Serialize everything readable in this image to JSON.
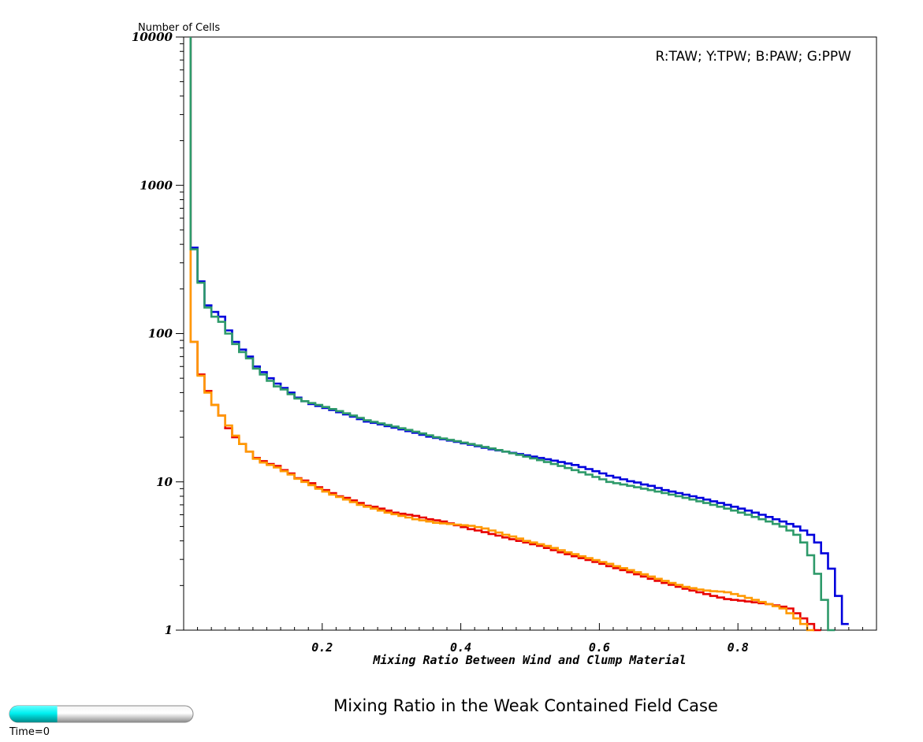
{
  "chart_data": {
    "type": "line",
    "title": "Mixing Ratio in the Weak Contained Field Case",
    "xlabel": "Mixing Ratio Between Wind and Clump Material",
    "ylabel": "Number of Cells",
    "legend_text": "R:TAW; Y:TPW; B:PAW; G:PPW",
    "legend_position": "top-right",
    "xlim": [
      0,
      1
    ],
    "ylim": [
      1,
      10000
    ],
    "yscale": "log",
    "grid": false,
    "x_ticks": [
      0.2,
      0.4,
      0.6,
      0.8
    ],
    "x_tick_labels": [
      "0.2",
      "0.4",
      "0.6",
      "0.8"
    ],
    "y_ticks": [
      1,
      10,
      100,
      1000,
      10000
    ],
    "y_tick_labels": [
      "1",
      "10",
      "100",
      "1000",
      "10000"
    ],
    "time_label": "Time=0",
    "time_progress": 0.26,
    "series": [
      {
        "code": "R",
        "color": "#e80000",
        "y_start": 10000,
        "x_step": 0.01,
        "values": [
          88,
          53,
          41,
          33,
          28,
          23,
          20,
          18,
          16,
          14.5,
          13.8,
          13.2,
          12.8,
          12,
          11.4,
          10.6,
          10.2,
          9.8,
          9.2,
          8.8,
          8.4,
          8,
          7.8,
          7.5,
          7.2,
          6.9,
          6.8,
          6.6,
          6.4,
          6.2,
          6.1,
          6,
          5.9,
          5.75,
          5.6,
          5.5,
          5.4,
          5.25,
          5.1,
          4.95,
          4.8,
          4.7,
          4.58,
          4.45,
          4.34,
          4.22,
          4.1,
          4,
          3.9,
          3.8,
          3.7,
          3.58,
          3.46,
          3.35,
          3.25,
          3.15,
          3.06,
          2.97,
          2.88,
          2.8,
          2.7,
          2.62,
          2.54,
          2.46,
          2.38,
          2.3,
          2.22,
          2.15,
          2.08,
          2.02,
          1.96,
          1.9,
          1.85,
          1.8,
          1.75,
          1.7,
          1.66,
          1.62,
          1.6,
          1.58,
          1.56,
          1.54,
          1.52,
          1.5,
          1.47,
          1.44,
          1.4,
          1.3,
          1.2,
          1.1,
          1.0
        ]
      },
      {
        "code": "Y",
        "color": "#ff9900",
        "y_start": 10000,
        "x_step": 0.01,
        "values": [
          88,
          52,
          40,
          33,
          28,
          24,
          20.5,
          18,
          16,
          14.3,
          13.5,
          13,
          12.5,
          11.8,
          11.2,
          10.5,
          10,
          9.5,
          9,
          8.6,
          8.2,
          7.9,
          7.6,
          7.3,
          7,
          6.8,
          6.6,
          6.4,
          6.2,
          6.05,
          5.9,
          5.75,
          5.6,
          5.5,
          5.4,
          5.3,
          5.25,
          5.2,
          5.15,
          5.1,
          5.05,
          4.95,
          4.85,
          4.7,
          4.55,
          4.4,
          4.28,
          4.15,
          4,
          3.9,
          3.8,
          3.7,
          3.58,
          3.46,
          3.35,
          3.25,
          3.15,
          3.06,
          2.97,
          2.88,
          2.8,
          2.7,
          2.62,
          2.54,
          2.46,
          2.38,
          2.3,
          2.22,
          2.15,
          2.08,
          2.02,
          1.96,
          1.92,
          1.88,
          1.85,
          1.83,
          1.82,
          1.8,
          1.75,
          1.7,
          1.65,
          1.6,
          1.55,
          1.5,
          1.45,
          1.4,
          1.3,
          1.2,
          1.1,
          1.0
        ]
      },
      {
        "code": "B",
        "color": "#0000dd",
        "y_start": 10000,
        "x_step": 0.01,
        "values": [
          380,
          225,
          155,
          140,
          130,
          105,
          88,
          78,
          70,
          60,
          55,
          50,
          46,
          43,
          40,
          37,
          35,
          33.5,
          32.5,
          31.5,
          30.5,
          29.5,
          28.5,
          27.5,
          26.5,
          25.5,
          25,
          24.4,
          23.8,
          23.2,
          22.6,
          22,
          21.4,
          20.8,
          20.2,
          19.8,
          19.4,
          19,
          18.6,
          18.2,
          17.8,
          17.4,
          17,
          16.6,
          16.3,
          16,
          15.7,
          15.4,
          15.1,
          14.8,
          14.5,
          14.2,
          13.9,
          13.6,
          13.3,
          13,
          12.6,
          12.2,
          11.8,
          11.4,
          11,
          10.7,
          10.4,
          10.1,
          9.9,
          9.6,
          9.4,
          9.1,
          8.8,
          8.6,
          8.4,
          8.2,
          8,
          7.8,
          7.6,
          7.4,
          7.2,
          7,
          6.8,
          6.6,
          6.4,
          6.2,
          6,
          5.8,
          5.6,
          5.4,
          5.2,
          5,
          4.7,
          4.4,
          3.9,
          3.3,
          2.6,
          1.7,
          1.1
        ]
      },
      {
        "code": "G",
        "color": "#2e9a6a",
        "y_start": 10000,
        "x_step": 0.01,
        "values": [
          370,
          220,
          150,
          130,
          120,
          100,
          85,
          75,
          68,
          58,
          53,
          48,
          44,
          42,
          39,
          36.5,
          35,
          34,
          33,
          32,
          31,
          30,
          29,
          28,
          27,
          26,
          25.4,
          24.8,
          24.2,
          23.6,
          23,
          22.4,
          21.8,
          21.2,
          20.6,
          20,
          19.6,
          19.2,
          18.8,
          18.4,
          18,
          17.6,
          17.2,
          16.8,
          16.4,
          16,
          15.6,
          15.2,
          14.8,
          14.4,
          14,
          13.6,
          13.2,
          12.8,
          12.4,
          12,
          11.6,
          11.2,
          10.8,
          10.4,
          10,
          9.8,
          9.6,
          9.4,
          9.2,
          9,
          8.8,
          8.6,
          8.4,
          8.2,
          8,
          7.8,
          7.6,
          7.4,
          7.2,
          7,
          6.8,
          6.6,
          6.4,
          6.2,
          6,
          5.8,
          5.6,
          5.4,
          5.2,
          5,
          4.7,
          4.4,
          3.9,
          3.2,
          2.4,
          1.6,
          1.0
        ]
      }
    ]
  }
}
